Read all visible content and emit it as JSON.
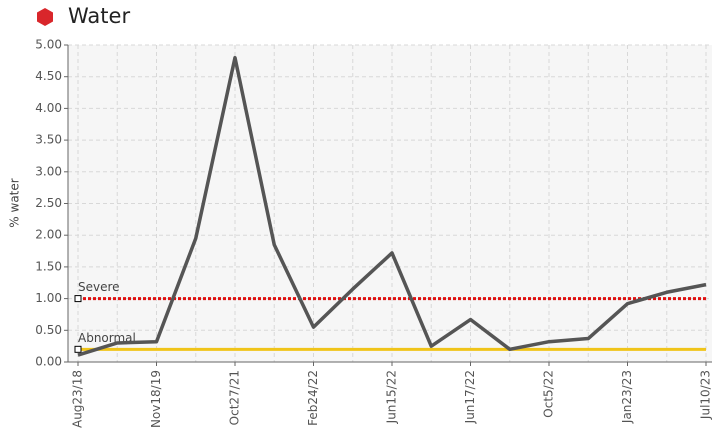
{
  "chart_data": {
    "type": "line",
    "title": "Water",
    "y_label": "% water",
    "categories": [
      "Aug23/18",
      null,
      "Nov18/19",
      null,
      "Oct27/21",
      null,
      "Feb24/22",
      null,
      "Jun15/22",
      null,
      "Jun17/22",
      null,
      "Oct5/22",
      null,
      "Jan23/23",
      null,
      "Jul10/23"
    ],
    "series": [
      {
        "name": "Water",
        "color": "#555555",
        "values": [
          0.11,
          0.3,
          0.32,
          1.95,
          4.8,
          1.85,
          0.55,
          1.15,
          1.72,
          0.25,
          0.67,
          0.2,
          0.32,
          0.37,
          0.92,
          1.1,
          1.22
        ]
      }
    ],
    "thresholds": [
      {
        "name": "Severe",
        "value": 1.0,
        "color": "#e01010"
      },
      {
        "name": "Abnormal",
        "value": 0.2,
        "color": "#f0c419"
      }
    ],
    "ylim": [
      0,
      5
    ],
    "yticks": [
      {
        "value": 0,
        "label": "0.00"
      },
      {
        "value": 0.5,
        "label": "0.50"
      },
      {
        "value": 1,
        "label": "1.00"
      },
      {
        "value": 1.5,
        "label": "1.50"
      },
      {
        "value": 2,
        "label": "2.00"
      },
      {
        "value": 2.5,
        "label": "2.50"
      },
      {
        "value": 3,
        "label": "3.00"
      },
      {
        "value": 3.5,
        "label": "3.50"
      },
      {
        "value": 4,
        "label": "4.00"
      },
      {
        "value": 4.5,
        "label": "4.50"
      },
      {
        "value": 5,
        "label": "5.00"
      }
    ],
    "grid": true,
    "title_icon_color": "#d9262b"
  }
}
